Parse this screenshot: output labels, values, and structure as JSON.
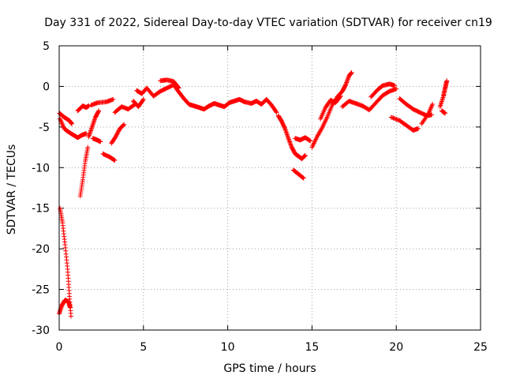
{
  "chart_data": {
    "type": "scatter",
    "title": "Day 331 of 2022, Sidereal Day-to-day VTEC variation (SDTVAR) for receiver cn19",
    "xlabel": "GPS time / hours",
    "ylabel": "SDTVAR / TECUs",
    "xlim": [
      0,
      25
    ],
    "ylim": [
      -30,
      5
    ],
    "xticks": [
      0,
      5,
      10,
      15,
      20,
      25
    ],
    "yticks": [
      -30,
      -25,
      -20,
      -15,
      -10,
      -5,
      0,
      5
    ],
    "grid": true,
    "marker": "+",
    "color": "#ff0000",
    "series": [
      {
        "name": "SDTVAR",
        "segments": [
          [
            [
              0.02,
              -3.3
            ],
            [
              0.3,
              -3.8
            ],
            [
              0.6,
              -4.2
            ],
            [
              0.75,
              -4.6
            ]
          ],
          [
            [
              0.05,
              -4.0
            ],
            [
              0.3,
              -5.2
            ],
            [
              0.55,
              -5.6
            ],
            [
              0.85,
              -6.0
            ],
            [
              1.1,
              -6.3
            ],
            [
              1.35,
              -6.0
            ],
            [
              1.6,
              -5.8
            ]
          ],
          [
            [
              0.05,
              -15.0
            ],
            [
              0.2,
              -16.8
            ],
            [
              0.35,
              -19.5
            ],
            [
              0.5,
              -22.5
            ],
            [
              0.6,
              -25.5
            ],
            [
              0.7,
              -28.3
            ]
          ],
          [
            [
              0.0,
              -28.0
            ],
            [
              0.15,
              -27.0
            ],
            [
              0.35,
              -26.3
            ],
            [
              0.55,
              -26.5
            ],
            [
              0.65,
              -27.2
            ]
          ],
          [
            [
              1.1,
              -3.0
            ],
            [
              1.4,
              -2.4
            ],
            [
              1.6,
              -2.6
            ],
            [
              1.75,
              -2.4
            ]
          ],
          [
            [
              1.25,
              -13.5
            ],
            [
              1.4,
              -11.5
            ],
            [
              1.55,
              -9.2
            ],
            [
              1.7,
              -7.5
            ]
          ],
          [
            [
              1.75,
              -6.2
            ],
            [
              1.95,
              -5.0
            ],
            [
              2.15,
              -3.8
            ],
            [
              2.35,
              -3.0
            ]
          ],
          [
            [
              2.0,
              -6.4
            ],
            [
              2.25,
              -6.6
            ],
            [
              2.45,
              -6.8
            ]
          ],
          [
            [
              1.9,
              -2.3
            ],
            [
              2.3,
              -2.0
            ],
            [
              2.8,
              -1.9
            ],
            [
              3.2,
              -1.6
            ]
          ],
          [
            [
              2.6,
              -8.3
            ],
            [
              3.0,
              -8.7
            ],
            [
              3.3,
              -9.1
            ]
          ],
          [
            [
              3.1,
              -7.0
            ],
            [
              3.35,
              -6.2
            ],
            [
              3.6,
              -5.2
            ],
            [
              3.85,
              -4.7
            ]
          ],
          [
            [
              3.3,
              -3.2
            ],
            [
              3.7,
              -2.5
            ],
            [
              4.1,
              -2.8
            ],
            [
              4.5,
              -2.2
            ]
          ],
          [
            [
              4.6,
              -0.5
            ],
            [
              4.9,
              -0.9
            ],
            [
              5.2,
              -0.2
            ],
            [
              5.6,
              -1.2
            ],
            [
              6.0,
              -0.6
            ],
            [
              6.4,
              -0.2
            ],
            [
              6.8,
              0.2
            ],
            [
              7.1,
              -0.7
            ],
            [
              7.4,
              -1.5
            ],
            [
              7.7,
              -2.2
            ],
            [
              8.0,
              -2.4
            ],
            [
              8.3,
              -2.6
            ],
            [
              8.6,
              -2.8
            ],
            [
              8.9,
              -2.4
            ],
            [
              9.2,
              -2.1
            ],
            [
              9.5,
              -2.3
            ],
            [
              9.8,
              -2.5
            ],
            [
              10.1,
              -2.0
            ],
            [
              10.4,
              -1.8
            ],
            [
              10.7,
              -1.6
            ],
            [
              11.0,
              -1.9
            ],
            [
              11.4,
              -2.1
            ],
            [
              11.7,
              -1.8
            ],
            [
              12.0,
              -2.2
            ],
            [
              12.3,
              -1.6
            ],
            [
              12.6,
              -2.3
            ],
            [
              12.9,
              -3.2
            ]
          ],
          [
            [
              6.0,
              0.7
            ],
            [
              6.4,
              0.8
            ],
            [
              6.8,
              0.6
            ],
            [
              7.1,
              -0.2
            ]
          ],
          [
            [
              4.4,
              -1.8
            ],
            [
              4.7,
              -2.5
            ],
            [
              5.0,
              -1.6
            ]
          ],
          [
            [
              13.0,
              -3.6
            ],
            [
              13.2,
              -4.3
            ],
            [
              13.4,
              -5.2
            ],
            [
              13.6,
              -6.4
            ],
            [
              13.8,
              -7.5
            ],
            [
              14.0,
              -8.3
            ],
            [
              14.2,
              -8.6
            ],
            [
              14.4,
              -8.9
            ],
            [
              14.6,
              -8.5
            ]
          ],
          [
            [
              13.9,
              -10.3
            ],
            [
              14.2,
              -10.8
            ],
            [
              14.5,
              -11.3
            ]
          ],
          [
            [
              14.0,
              -6.4
            ],
            [
              14.3,
              -6.6
            ],
            [
              14.6,
              -6.3
            ],
            [
              14.9,
              -6.7
            ]
          ],
          [
            [
              15.0,
              -7.5
            ],
            [
              15.3,
              -6.2
            ],
            [
              15.6,
              -5.1
            ],
            [
              15.9,
              -3.8
            ],
            [
              16.2,
              -2.3
            ],
            [
              16.5,
              -1.3
            ],
            [
              16.8,
              -0.6
            ],
            [
              17.0,
              0.2
            ],
            [
              17.2,
              1.3
            ],
            [
              17.35,
              1.7
            ]
          ],
          [
            [
              15.5,
              -4.0
            ],
            [
              15.8,
              -2.6
            ],
            [
              16.1,
              -1.7
            ],
            [
              16.4,
              -2.0
            ],
            [
              16.7,
              -1.2
            ]
          ],
          [
            [
              16.8,
              -2.5
            ],
            [
              17.2,
              -1.8
            ],
            [
              17.6,
              -2.1
            ],
            [
              18.0,
              -2.4
            ],
            [
              18.4,
              -2.9
            ],
            [
              18.8,
              -2.0
            ],
            [
              19.2,
              -1.1
            ],
            [
              19.6,
              -0.6
            ],
            [
              20.0,
              -0.3
            ]
          ],
          [
            [
              18.5,
              -1.3
            ],
            [
              18.9,
              -0.4
            ],
            [
              19.2,
              0.1
            ],
            [
              19.6,
              0.3
            ],
            [
              19.9,
              0.1
            ]
          ],
          [
            [
              19.7,
              -3.8
            ],
            [
              20.2,
              -4.2
            ],
            [
              20.6,
              -4.8
            ],
            [
              21.0,
              -5.4
            ],
            [
              21.3,
              -5.2
            ]
          ],
          [
            [
              20.2,
              -1.5
            ],
            [
              20.6,
              -2.2
            ],
            [
              21.0,
              -2.8
            ],
            [
              21.4,
              -3.2
            ],
            [
              21.8,
              -3.6
            ],
            [
              22.1,
              -3.5
            ]
          ],
          [
            [
              21.5,
              -4.6
            ],
            [
              21.9,
              -3.4
            ],
            [
              22.15,
              -2.2
            ]
          ],
          [
            [
              22.6,
              -2.5
            ],
            [
              22.8,
              -1.2
            ],
            [
              22.9,
              -0.2
            ],
            [
              23.0,
              0.7
            ]
          ],
          [
            [
              22.7,
              -3.0
            ],
            [
              22.9,
              -3.3
            ]
          ]
        ]
      }
    ]
  }
}
